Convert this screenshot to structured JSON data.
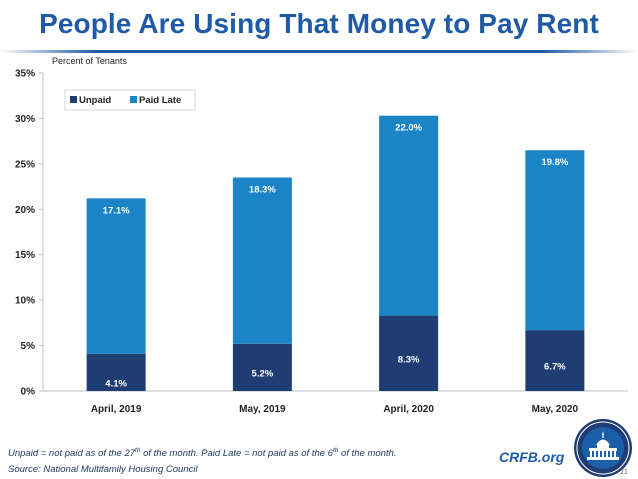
{
  "slide": {
    "title": "People Are Using That Money to Pay Rent",
    "footnote_line1_parts": {
      "a": "Unpaid = not paid as of the 27",
      "a_sup": "th",
      "b": " of the month. Paid Late = not paid as of the 6",
      "b_sup": "th",
      "c": " of the month."
    },
    "footnote_line2": "Source: National Multifamily Housing Council",
    "brand": "CRFB.org",
    "page_number": "21"
  },
  "chart_data": {
    "type": "stacked-bar",
    "title": "",
    "ylabel": "Percent of Tenants",
    "xlabel": "",
    "categories": [
      "April, 2019",
      "May, 2019",
      "April, 2020",
      "May, 2020"
    ],
    "series": [
      {
        "name": "Unpaid",
        "color": "#1f3d73",
        "values": [
          4.1,
          5.2,
          8.3,
          6.7
        ],
        "labels": [
          "4.1%",
          "5.2%",
          "8.3%",
          "6.7%"
        ]
      },
      {
        "name": "Paid Late",
        "color": "#1b84c6",
        "values": [
          17.1,
          18.3,
          22.0,
          19.8
        ],
        "labels": [
          "17.1%",
          "18.3%",
          "22.0%",
          "19.8%"
        ]
      }
    ],
    "ylim": [
      0,
      35
    ],
    "yticks": [
      0,
      5,
      10,
      15,
      20,
      25,
      30,
      35
    ],
    "ytick_labels": [
      "0%",
      "5%",
      "10%",
      "15%",
      "20%",
      "25%",
      "30%",
      "35%"
    ],
    "legend": [
      "Unpaid",
      "Paid Late"
    ],
    "legend_position": "top-left",
    "grid": false
  }
}
